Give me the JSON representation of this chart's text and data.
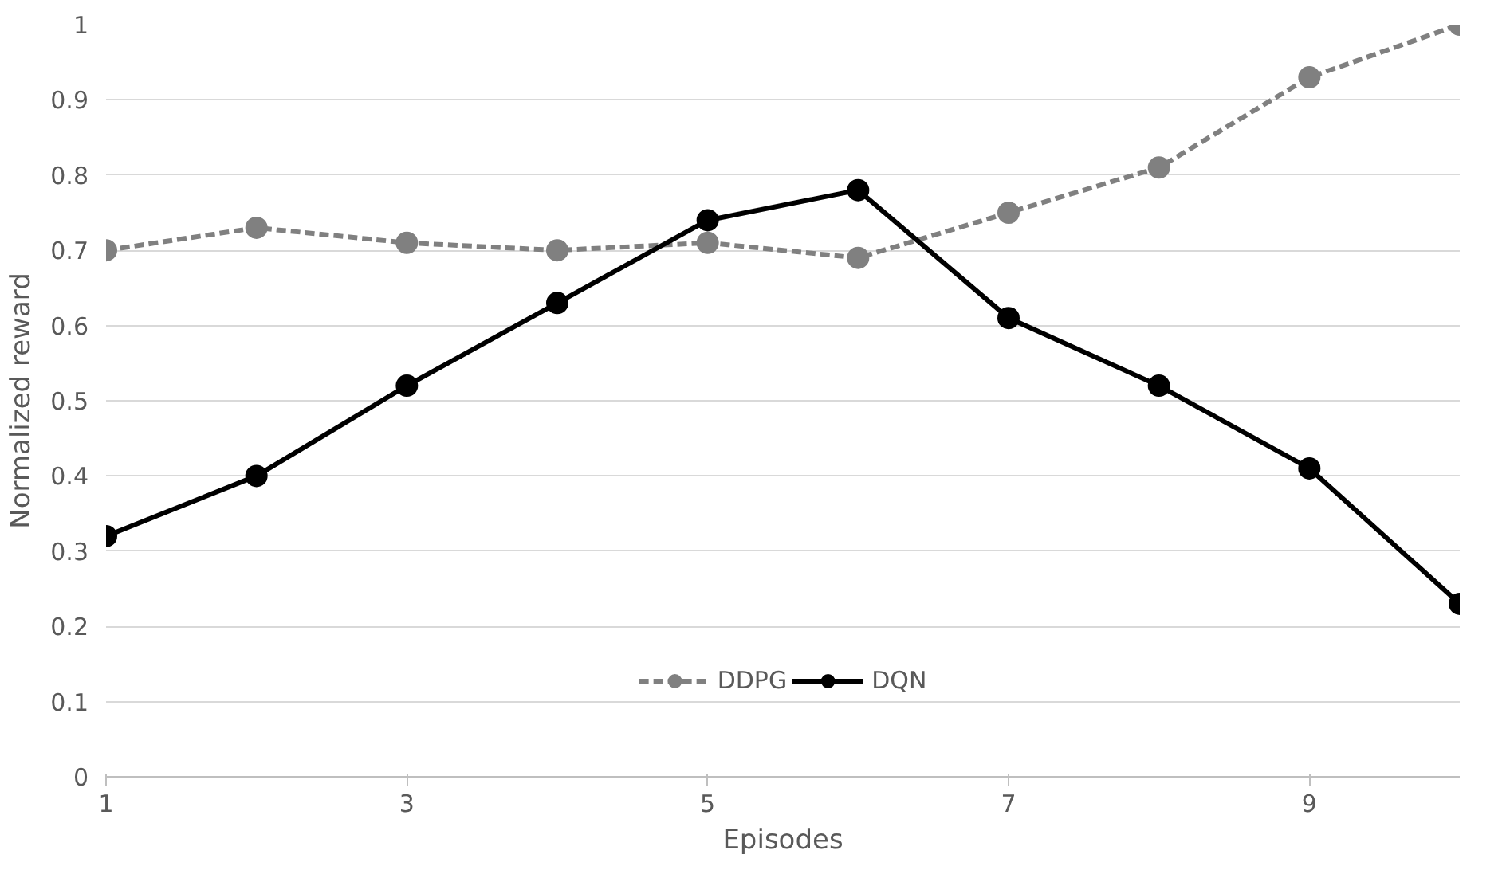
{
  "chart_data": {
    "type": "line",
    "xlabel": "Episodes",
    "ylabel": "Normalized reward",
    "x": [
      1,
      2,
      3,
      4,
      5,
      6,
      7,
      8,
      9,
      10
    ],
    "xlim": [
      1,
      10
    ],
    "xticks": [
      1,
      3,
      5,
      7,
      9
    ],
    "ylim": [
      0,
      1
    ],
    "yticks": [
      0,
      0.1,
      0.2,
      0.3,
      0.4,
      0.5,
      0.6,
      0.7,
      0.8,
      0.9,
      1
    ],
    "grid": "y",
    "legend": "bottom",
    "marker": "circle",
    "series": [
      {
        "name": "DDPG",
        "color": "#808080",
        "line_style": "dashed",
        "values": [
          0.7,
          0.73,
          0.71,
          0.7,
          0.71,
          0.69,
          0.75,
          0.81,
          0.93,
          1.0
        ]
      },
      {
        "name": "DQN",
        "color": "#000000",
        "line_style": "solid",
        "values": [
          0.32,
          0.4,
          0.52,
          0.63,
          0.74,
          0.78,
          0.61,
          0.52,
          0.41,
          0.23
        ]
      }
    ]
  }
}
